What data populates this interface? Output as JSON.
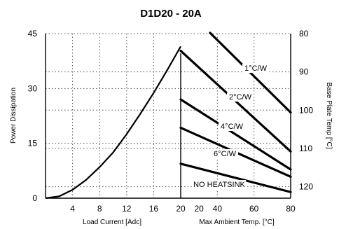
{
  "chart_data": {
    "type": "line",
    "title": "D1D20 - 20A",
    "grid": true,
    "left_panel": {
      "xlabel": "Load Current [Adc]",
      "ylabel": "Power Dissipation",
      "xlim": [
        0,
        20
      ],
      "ylim": [
        0,
        45
      ],
      "x_ticks": [
        "4",
        "8",
        "12",
        "16",
        "20"
      ],
      "y_ticks": [
        "0",
        "15",
        "30",
        "45"
      ],
      "series": [
        {
          "x": [
            0,
            2,
            4,
            6,
            8,
            10,
            12,
            14,
            16,
            18,
            20
          ],
          "y": [
            0,
            0.5,
            2.3,
            5.0,
            8.5,
            12.5,
            17.5,
            23.0,
            28.8,
            35.0,
            41.5
          ]
        }
      ]
    },
    "right_panel": {
      "xlabel": "Max Ambient Temp. [°C]",
      "ylabel": "Base Plate Temp [°C]",
      "x_ticks": [
        "20",
        "20",
        "40",
        "60",
        "80"
      ],
      "y_ticks": [
        "80",
        "90",
        "100",
        "110",
        "120"
      ],
      "ylim": [
        80,
        123
      ],
      "series": [
        {
          "name": "1°C/W",
          "x": [
            36,
            80
          ],
          "y": [
            79.8,
            100.6
          ]
        },
        {
          "name": "2°C/W",
          "x": [
            20,
            80
          ],
          "y": [
            84.5,
            110.8
          ]
        },
        {
          "name": "4°C/W",
          "x": [
            20,
            80
          ],
          "y": [
            97.2,
            115.5
          ]
        },
        {
          "name": "6°C/W",
          "x": [
            20,
            80
          ],
          "y": [
            104.6,
            117.4
          ]
        },
        {
          "name": "NO HEATSINK",
          "x": [
            20,
            80
          ],
          "y": [
            114.0,
            121.4
          ]
        }
      ]
    },
    "colors": {
      "line": "#000000",
      "grid": "#555555",
      "background": "#ffffff"
    }
  }
}
